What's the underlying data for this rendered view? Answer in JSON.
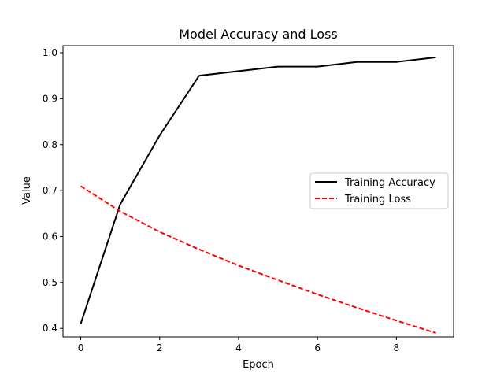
{
  "chart_data": {
    "type": "line",
    "title": "Model Accuracy and Loss",
    "xlabel": "Epoch",
    "ylabel": "Value",
    "xlim": [
      -0.45,
      9.45
    ],
    "ylim": [
      0.3815,
      1.0155
    ],
    "xticks": [
      0,
      2,
      4,
      6,
      8
    ],
    "yticks": [
      0.4,
      0.5,
      0.6,
      0.7,
      0.8,
      0.9,
      1.0
    ],
    "xtick_labels": [
      "0",
      "2",
      "4",
      "6",
      "8"
    ],
    "ytick_labels": [
      "0.4",
      "0.5",
      "0.6",
      "0.7",
      "0.8",
      "0.9",
      "1.0"
    ],
    "grid": false,
    "legend_placement": "center-right",
    "x": [
      0,
      1,
      2,
      3,
      4,
      5,
      6,
      7,
      8,
      9
    ],
    "series": [
      {
        "name": "Training Accuracy",
        "values": [
          0.41,
          0.67,
          0.82,
          0.95,
          0.96,
          0.97,
          0.97,
          0.98,
          0.98,
          0.99
        ],
        "color": "#000000",
        "style": "solid"
      },
      {
        "name": "Training Loss",
        "values": [
          0.71,
          0.655,
          0.61,
          0.572,
          0.537,
          0.505,
          0.474,
          0.445,
          0.417,
          0.39
        ],
        "color": "#ff0000",
        "style": "dashed"
      }
    ]
  }
}
